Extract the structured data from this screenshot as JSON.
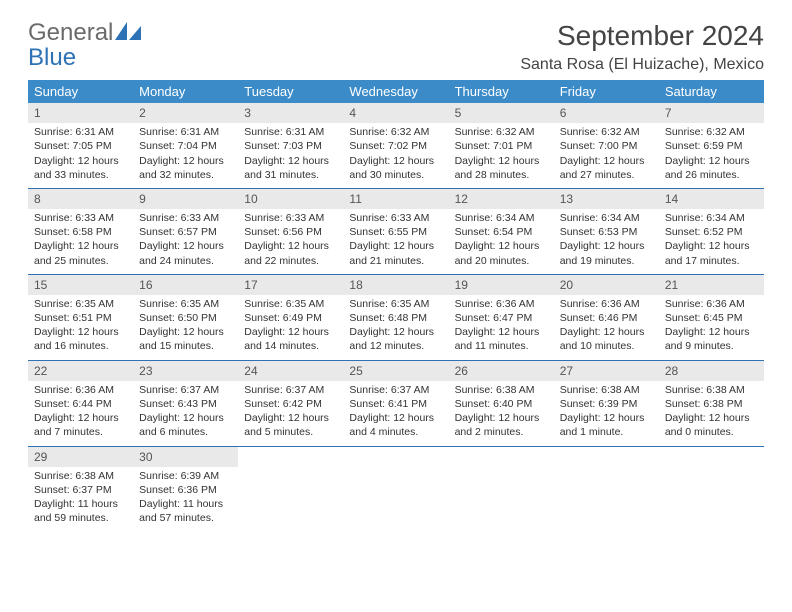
{
  "logo": {
    "text_gray": "General",
    "text_blue": "Blue"
  },
  "header": {
    "month_title": "September 2024",
    "location": "Santa Rosa (El Huizache), Mexico"
  },
  "colors": {
    "header_bg": "#3b8bc9",
    "header_text": "#ffffff",
    "border": "#2d72b5",
    "daynum_bg": "#e9e9e9",
    "text": "#333333"
  },
  "day_headers": [
    "Sunday",
    "Monday",
    "Tuesday",
    "Wednesday",
    "Thursday",
    "Friday",
    "Saturday"
  ],
  "weeks": [
    [
      {
        "n": "1",
        "sr": "6:31 AM",
        "ss": "7:05 PM",
        "dl": "12 hours and 33 minutes."
      },
      {
        "n": "2",
        "sr": "6:31 AM",
        "ss": "7:04 PM",
        "dl": "12 hours and 32 minutes."
      },
      {
        "n": "3",
        "sr": "6:31 AM",
        "ss": "7:03 PM",
        "dl": "12 hours and 31 minutes."
      },
      {
        "n": "4",
        "sr": "6:32 AM",
        "ss": "7:02 PM",
        "dl": "12 hours and 30 minutes."
      },
      {
        "n": "5",
        "sr": "6:32 AM",
        "ss": "7:01 PM",
        "dl": "12 hours and 28 minutes."
      },
      {
        "n": "6",
        "sr": "6:32 AM",
        "ss": "7:00 PM",
        "dl": "12 hours and 27 minutes."
      },
      {
        "n": "7",
        "sr": "6:32 AM",
        "ss": "6:59 PM",
        "dl": "12 hours and 26 minutes."
      }
    ],
    [
      {
        "n": "8",
        "sr": "6:33 AM",
        "ss": "6:58 PM",
        "dl": "12 hours and 25 minutes."
      },
      {
        "n": "9",
        "sr": "6:33 AM",
        "ss": "6:57 PM",
        "dl": "12 hours and 24 minutes."
      },
      {
        "n": "10",
        "sr": "6:33 AM",
        "ss": "6:56 PM",
        "dl": "12 hours and 22 minutes."
      },
      {
        "n": "11",
        "sr": "6:33 AM",
        "ss": "6:55 PM",
        "dl": "12 hours and 21 minutes."
      },
      {
        "n": "12",
        "sr": "6:34 AM",
        "ss": "6:54 PM",
        "dl": "12 hours and 20 minutes."
      },
      {
        "n": "13",
        "sr": "6:34 AM",
        "ss": "6:53 PM",
        "dl": "12 hours and 19 minutes."
      },
      {
        "n": "14",
        "sr": "6:34 AM",
        "ss": "6:52 PM",
        "dl": "12 hours and 17 minutes."
      }
    ],
    [
      {
        "n": "15",
        "sr": "6:35 AM",
        "ss": "6:51 PM",
        "dl": "12 hours and 16 minutes."
      },
      {
        "n": "16",
        "sr": "6:35 AM",
        "ss": "6:50 PM",
        "dl": "12 hours and 15 minutes."
      },
      {
        "n": "17",
        "sr": "6:35 AM",
        "ss": "6:49 PM",
        "dl": "12 hours and 14 minutes."
      },
      {
        "n": "18",
        "sr": "6:35 AM",
        "ss": "6:48 PM",
        "dl": "12 hours and 12 minutes."
      },
      {
        "n": "19",
        "sr": "6:36 AM",
        "ss": "6:47 PM",
        "dl": "12 hours and 11 minutes."
      },
      {
        "n": "20",
        "sr": "6:36 AM",
        "ss": "6:46 PM",
        "dl": "12 hours and 10 minutes."
      },
      {
        "n": "21",
        "sr": "6:36 AM",
        "ss": "6:45 PM",
        "dl": "12 hours and 9 minutes."
      }
    ],
    [
      {
        "n": "22",
        "sr": "6:36 AM",
        "ss": "6:44 PM",
        "dl": "12 hours and 7 minutes."
      },
      {
        "n": "23",
        "sr": "6:37 AM",
        "ss": "6:43 PM",
        "dl": "12 hours and 6 minutes."
      },
      {
        "n": "24",
        "sr": "6:37 AM",
        "ss": "6:42 PM",
        "dl": "12 hours and 5 minutes."
      },
      {
        "n": "25",
        "sr": "6:37 AM",
        "ss": "6:41 PM",
        "dl": "12 hours and 4 minutes."
      },
      {
        "n": "26",
        "sr": "6:38 AM",
        "ss": "6:40 PM",
        "dl": "12 hours and 2 minutes."
      },
      {
        "n": "27",
        "sr": "6:38 AM",
        "ss": "6:39 PM",
        "dl": "12 hours and 1 minute."
      },
      {
        "n": "28",
        "sr": "6:38 AM",
        "ss": "6:38 PM",
        "dl": "12 hours and 0 minutes."
      }
    ],
    [
      {
        "n": "29",
        "sr": "6:38 AM",
        "ss": "6:37 PM",
        "dl": "11 hours and 59 minutes."
      },
      {
        "n": "30",
        "sr": "6:39 AM",
        "ss": "6:36 PM",
        "dl": "11 hours and 57 minutes."
      },
      null,
      null,
      null,
      null,
      null
    ]
  ],
  "labels": {
    "sunrise": "Sunrise:",
    "sunset": "Sunset:",
    "daylight": "Daylight:"
  }
}
